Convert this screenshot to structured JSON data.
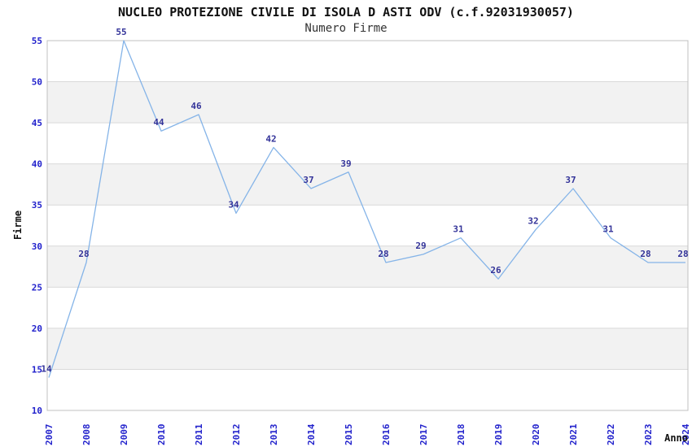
{
  "title": "NUCLEO PROTEZIONE CIVILE DI ISOLA D ASTI ODV (c.f.92031930057)",
  "subtitle": "Numero Firme",
  "chart_data": {
    "type": "line",
    "title": "NUCLEO PROTEZIONE CIVILE DI ISOLA D ASTI ODV (c.f.92031930057)",
    "subtitle": "Numero Firme",
    "xlabel": "Anno",
    "ylabel": "Firme",
    "x": [
      2007,
      2008,
      2009,
      2010,
      2011,
      2012,
      2013,
      2014,
      2015,
      2016,
      2017,
      2018,
      2019,
      2020,
      2021,
      2022,
      2023,
      2024
    ],
    "values": [
      14,
      28,
      55,
      44,
      46,
      34,
      42,
      37,
      39,
      28,
      29,
      31,
      26,
      32,
      37,
      31,
      28,
      28
    ],
    "point_labels": [
      "14",
      "28",
      "55",
      "44",
      "46",
      "34",
      "42",
      "37",
      "39",
      "28",
      "29",
      "31",
      "26",
      "32",
      "37",
      "31",
      "28",
      "28"
    ],
    "ylim": [
      10,
      55
    ],
    "ytick_step": 5,
    "yticks": [
      10,
      15,
      20,
      25,
      30,
      35,
      40,
      45,
      50,
      55
    ],
    "grid": "horizontal-only",
    "legend": "none",
    "colors": {
      "line": "#85b4e8",
      "grid": "#d9d9d9",
      "band": "#f2f2f2",
      "border": "#c0c0c0",
      "tick_label": "#2222cc",
      "point_label": "#333399"
    }
  }
}
